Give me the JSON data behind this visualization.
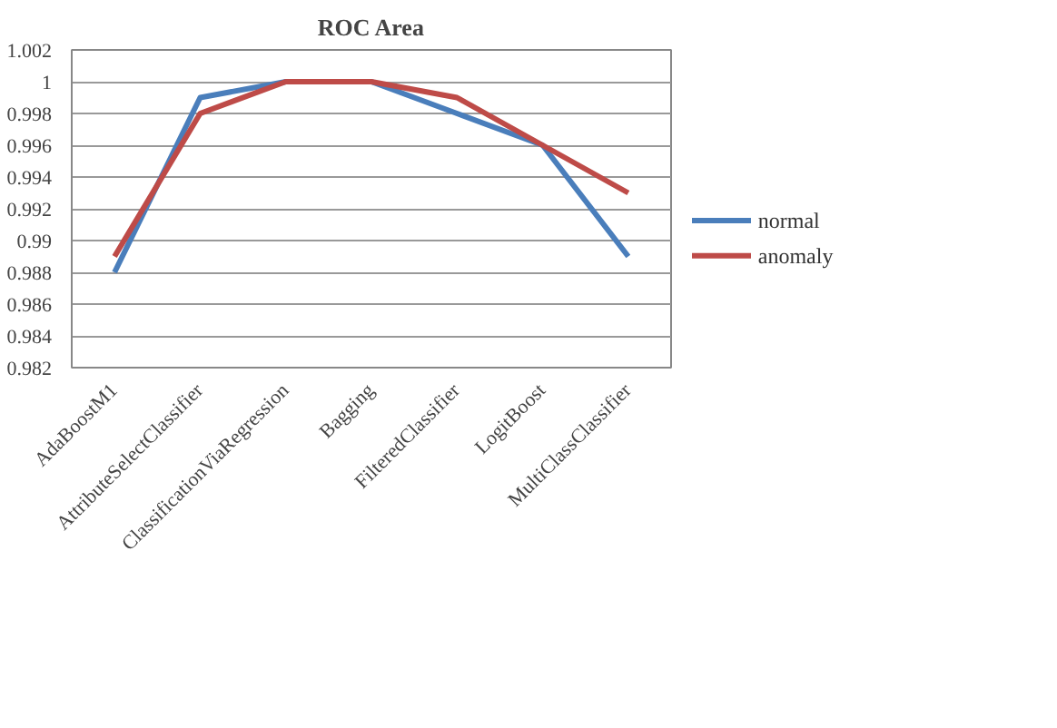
{
  "chart_data": {
    "type": "line",
    "title": "ROC Area",
    "categories": [
      "AdaBoostM1",
      "AttributeSelectClassifier",
      "ClassificationViaRegression",
      "Bagging",
      "FilteredClassifier",
      "LogitBoost",
      "MultiClassClassifier"
    ],
    "series": [
      {
        "name": "normal",
        "color": "#4a7ebb",
        "values": [
          0.988,
          0.999,
          1,
          1,
          0.998,
          0.996,
          0.989
        ]
      },
      {
        "name": "anomaly",
        "color": "#be4b48",
        "values": [
          0.989,
          0.998,
          1,
          1,
          0.999,
          0.996,
          0.993
        ]
      }
    ],
    "ylim": [
      0.982,
      1.002
    ],
    "yticks": [
      0.982,
      0.984,
      0.986,
      0.988,
      0.99,
      0.992,
      0.994,
      0.996,
      0.998,
      1,
      1.002
    ],
    "grid": "y",
    "legend": "right",
    "marker": "none",
    "line_style": "solid"
  }
}
